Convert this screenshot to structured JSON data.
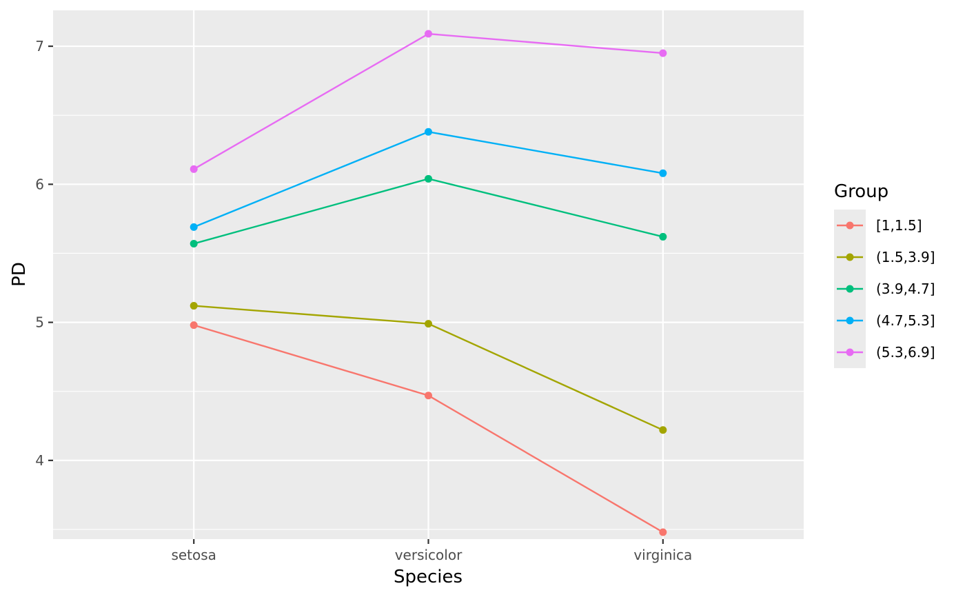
{
  "chart_data": {
    "type": "line",
    "xlabel": "Species",
    "ylabel": "PD",
    "categories": [
      "setosa",
      "versicolor",
      "virginica"
    ],
    "ylim": [
      3.43,
      7.26
    ],
    "yticks": [
      4,
      5,
      6,
      7
    ],
    "grid": true,
    "legend": {
      "title": "Group",
      "placement": "right"
    },
    "series": [
      {
        "name": "[1,1.5]",
        "color": "#F8766D",
        "values": [
          4.98,
          4.47,
          3.48
        ]
      },
      {
        "name": "(1.5,3.9]",
        "color": "#A3A500",
        "values": [
          5.12,
          4.99,
          4.22
        ]
      },
      {
        "name": "(3.9,4.7]",
        "color": "#00BF7D",
        "values": [
          5.57,
          6.04,
          5.62
        ]
      },
      {
        "name": "(4.7,5.3]",
        "color": "#00B0F6",
        "values": [
          5.69,
          6.38,
          6.08
        ]
      },
      {
        "name": "(5.3,6.9]",
        "color": "#E76BF3",
        "values": [
          6.11,
          7.09,
          6.95
        ]
      }
    ]
  }
}
